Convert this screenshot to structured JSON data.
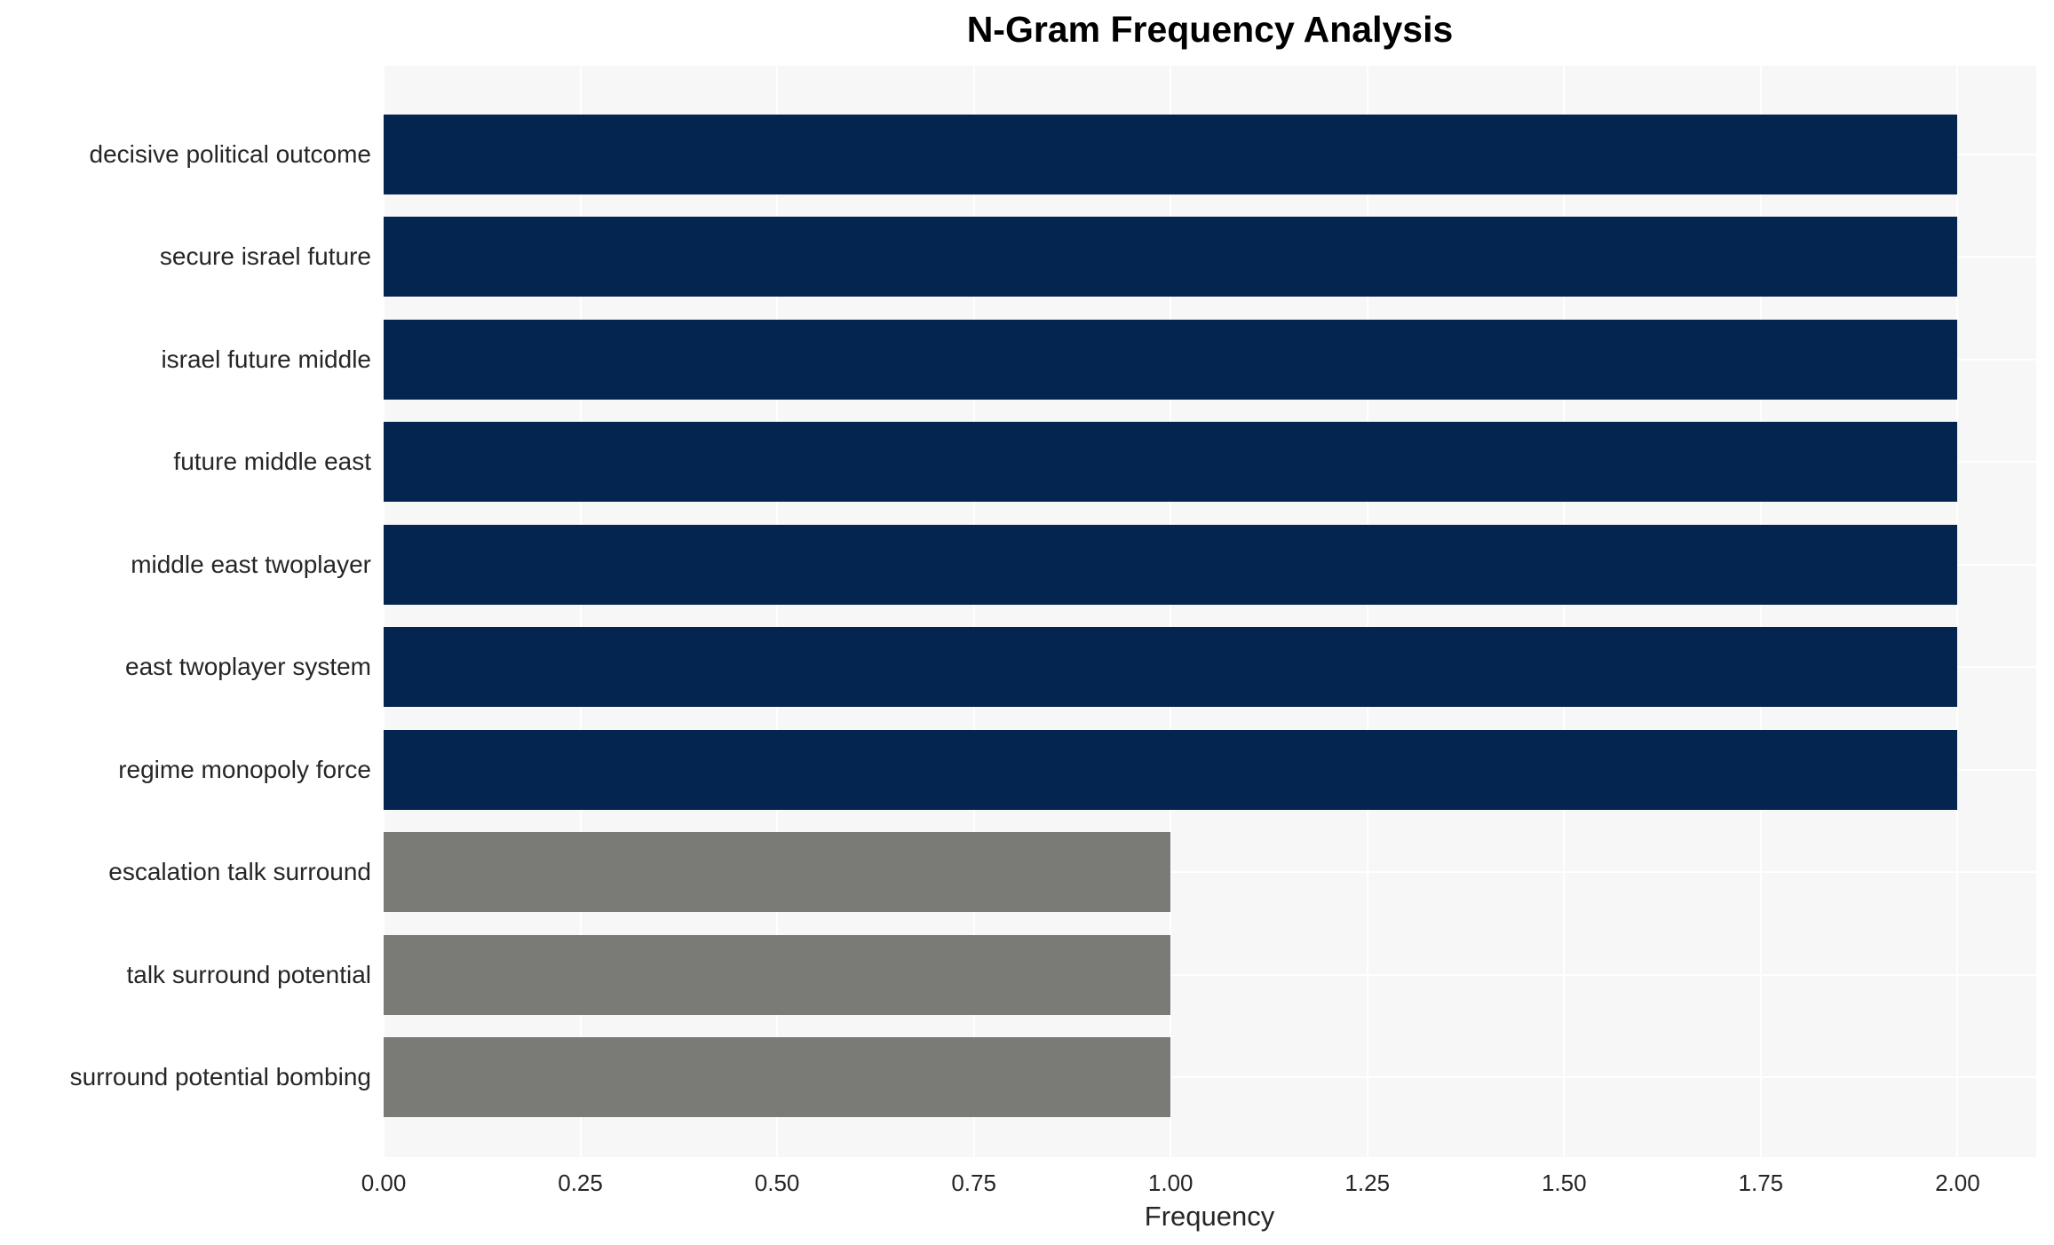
{
  "chart_data": {
    "type": "bar",
    "orientation": "horizontal",
    "title": "N-Gram Frequency Analysis",
    "xlabel": "Frequency",
    "ylabel": "",
    "categories": [
      "decisive political outcome",
      "secure israel future",
      "israel future middle",
      "future middle east",
      "middle east twoplayer",
      "east twoplayer system",
      "regime monopoly force",
      "escalation talk surround",
      "talk surround potential",
      "surround potential bombing"
    ],
    "values": [
      2.0,
      2.0,
      2.0,
      2.0,
      2.0,
      2.0,
      2.0,
      1.0,
      1.0,
      1.0
    ],
    "bar_colors": [
      "#04254f",
      "#04254f",
      "#04254f",
      "#04254f",
      "#04254f",
      "#04254f",
      "#04254f",
      "#7a7a76",
      "#7a7a76",
      "#7a7a76"
    ],
    "primary_color": "#04254f",
    "secondary_color": "#7a7a76",
    "xlim": [
      0,
      2.1
    ],
    "xticks": [
      0.0,
      0.25,
      0.5,
      0.75,
      1.0,
      1.25,
      1.5,
      1.75,
      2.0
    ],
    "xtick_labels": [
      "0.00",
      "0.25",
      "0.50",
      "0.75",
      "1.00",
      "1.25",
      "1.50",
      "1.75",
      "2.00"
    ],
    "grid": true,
    "grid_color": "#ffffff",
    "plot_background": "#f7f7f7",
    "legend": false
  }
}
